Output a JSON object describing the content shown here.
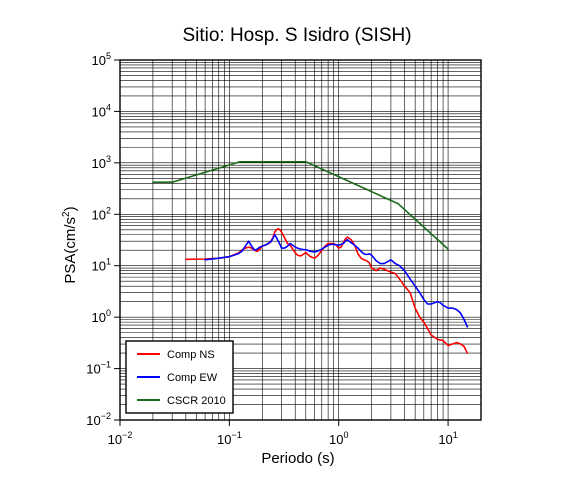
{
  "chart_data": {
    "type": "line",
    "title": "Sitio: Hosp. S Isidro (SISH)",
    "xlabel": "Periodo (s)",
    "ylabel_base": "PSA(cm/s",
    "ylabel_sup": "2",
    "ylabel_close": ")",
    "x_scale": "log",
    "y_scale": "log",
    "xlim": [
      0.01,
      20
    ],
    "ylim": [
      0.01,
      100000
    ],
    "grid": true,
    "legend_position": "bottom-left",
    "x_ticks": [
      {
        "value": 0.01,
        "base": "10",
        "exp": "−2"
      },
      {
        "value": 0.1,
        "base": "10",
        "exp": "−1"
      },
      {
        "value": 1,
        "base": "10",
        "exp": "0"
      },
      {
        "value": 10,
        "base": "10",
        "exp": "1"
      }
    ],
    "y_ticks": [
      {
        "value": 0.01,
        "base": "10",
        "exp": "−2"
      },
      {
        "value": 0.1,
        "base": "10",
        "exp": "−1"
      },
      {
        "value": 1,
        "base": "10",
        "exp": "0"
      },
      {
        "value": 10,
        "base": "10",
        "exp": "1"
      },
      {
        "value": 100,
        "base": "10",
        "exp": "2"
      },
      {
        "value": 1000,
        "base": "10",
        "exp": "3"
      },
      {
        "value": 10000,
        "base": "10",
        "exp": "4"
      },
      {
        "value": 100000,
        "base": "10",
        "exp": "5"
      }
    ],
    "series": [
      {
        "name": "Comp NS",
        "color": "#ff0000",
        "x": [
          0.04,
          0.06,
          0.08,
          0.1,
          0.12,
          0.13,
          0.14,
          0.15,
          0.16,
          0.17,
          0.18,
          0.19,
          0.2,
          0.21,
          0.22,
          0.23,
          0.24,
          0.25,
          0.26,
          0.27,
          0.28,
          0.29,
          0.3,
          0.32,
          0.34,
          0.36,
          0.38,
          0.4,
          0.42,
          0.45,
          0.48,
          0.5,
          0.55,
          0.6,
          0.65,
          0.7,
          0.75,
          0.8,
          0.85,
          0.9,
          0.95,
          1.0,
          1.05,
          1.1,
          1.15,
          1.2,
          1.3,
          1.4,
          1.5,
          1.6,
          1.7,
          1.8,
          1.9,
          2.0,
          2.2,
          2.4,
          2.6,
          2.8,
          3.0,
          3.3,
          3.6,
          4.0,
          4.5,
          5.0,
          5.5,
          6.0,
          6.5,
          7.0,
          8.0,
          9.0,
          10.0,
          11.0,
          12.0,
          13.0,
          14.0,
          15.0
        ],
        "values": [
          13.3,
          13.5,
          14.0,
          15.0,
          17.5,
          20.0,
          22.0,
          23.0,
          22.0,
          20.0,
          19.0,
          21.0,
          24.0,
          25.0,
          26.0,
          27.0,
          30.0,
          35.0,
          45.0,
          50.0,
          52.0,
          50.0,
          45.0,
          35.0,
          27.0,
          25.0,
          21.0,
          18.0,
          16.0,
          15.5,
          17.0,
          18.0,
          15.0,
          14.0,
          16.0,
          20.0,
          24.0,
          27.0,
          27.0,
          27.0,
          25.0,
          22.0,
          23.0,
          28.0,
          33.0,
          36.0,
          32.0,
          25.0,
          17.0,
          14.0,
          13.0,
          12.5,
          11.5,
          9.0,
          8.0,
          9.0,
          8.5,
          8.0,
          7.5,
          7.0,
          5.5,
          4.0,
          3.0,
          1.5,
          1.0,
          0.8,
          0.6,
          0.45,
          0.37,
          0.35,
          0.28,
          0.3,
          0.32,
          0.3,
          0.27,
          0.2
        ]
      },
      {
        "name": "Comp EW",
        "color": "#0000ff",
        "x": [
          0.06,
          0.08,
          0.1,
          0.12,
          0.13,
          0.14,
          0.15,
          0.16,
          0.17,
          0.18,
          0.19,
          0.2,
          0.21,
          0.22,
          0.23,
          0.24,
          0.25,
          0.26,
          0.27,
          0.28,
          0.29,
          0.3,
          0.32,
          0.34,
          0.36,
          0.38,
          0.4,
          0.42,
          0.45,
          0.48,
          0.5,
          0.55,
          0.6,
          0.65,
          0.7,
          0.75,
          0.8,
          0.85,
          0.9,
          0.95,
          1.0,
          1.05,
          1.1,
          1.15,
          1.2,
          1.3,
          1.4,
          1.5,
          1.6,
          1.7,
          1.8,
          1.9,
          2.0,
          2.2,
          2.4,
          2.6,
          2.8,
          3.0,
          3.3,
          3.6,
          4.0,
          4.5,
          5.0,
          5.5,
          6.0,
          6.5,
          7.0,
          7.5,
          8.0,
          8.5,
          9.0,
          10.0,
          11.0,
          12.0,
          13.0,
          14.0,
          15.0
        ],
        "values": [
          13.0,
          14.0,
          15.0,
          17.0,
          19.0,
          24.0,
          30.0,
          24.0,
          20.0,
          21.0,
          23.0,
          24.0,
          25.0,
          26.0,
          28.0,
          29.0,
          34.0,
          40.0,
          35.0,
          30.0,
          26.0,
          22.0,
          22.0,
          24.0,
          27.0,
          25.0,
          23.0,
          22.0,
          21.0,
          20.5,
          20.5,
          19.0,
          18.5,
          19.5,
          21.0,
          23.0,
          25.0,
          26.0,
          26.0,
          25.5,
          25.0,
          26.0,
          27.0,
          30.0,
          32.0,
          28.0,
          25.0,
          22.0,
          19.0,
          17.0,
          16.5,
          17.0,
          16.0,
          12.5,
          11.0,
          11.0,
          12.0,
          13.0,
          11.0,
          10.0,
          8.0,
          5.5,
          4.0,
          3.0,
          2.2,
          1.8,
          1.8,
          1.9,
          2.0,
          1.9,
          1.7,
          1.5,
          1.5,
          1.4,
          1.2,
          0.9,
          0.65
        ]
      },
      {
        "name": "CSCR 2010",
        "color": "#1a6a1a",
        "x": [
          0.02,
          0.03,
          0.125,
          0.5,
          3.5,
          10.0
        ],
        "values": [
          420,
          420,
          1050,
          1050,
          160,
          21
        ]
      }
    ]
  }
}
